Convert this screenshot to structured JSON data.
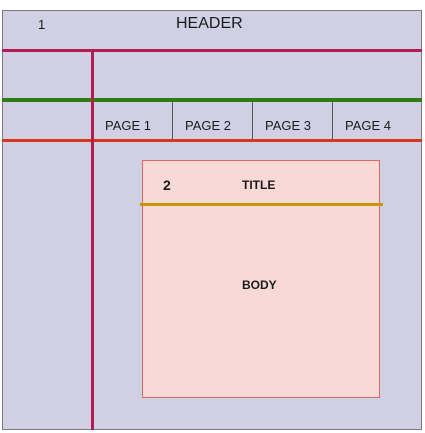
{
  "header": {
    "marker": "1",
    "title": "HEADER"
  },
  "nav": {
    "tabs": [
      "PAGE 1",
      "PAGE 2",
      "PAGE 3",
      "PAGE 4"
    ]
  },
  "panel": {
    "marker": "2",
    "title": "TITLE",
    "body": "BODY"
  },
  "colors": {
    "background": "#d0cfe4",
    "crimson_line": "#b01e50",
    "green_line": "#2e7d12",
    "red_line": "#d9341a",
    "gold_line": "#c8960a",
    "panel_fill": "#f9d9d5",
    "panel_border": "#d96a5c"
  }
}
